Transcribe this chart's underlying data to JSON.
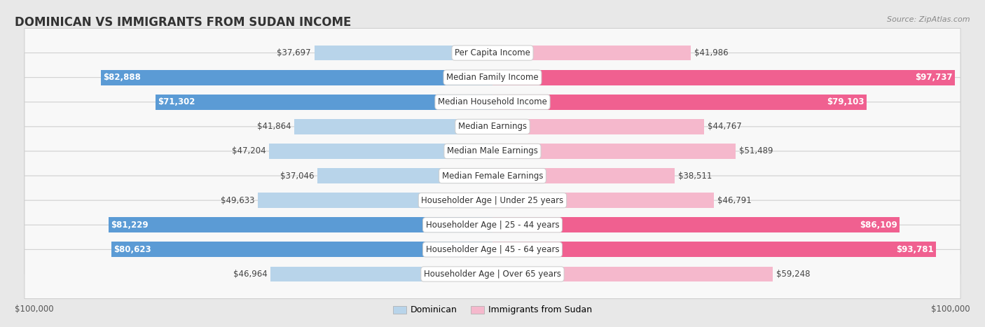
{
  "title": "DOMINICAN VS IMMIGRANTS FROM SUDAN INCOME",
  "source": "Source: ZipAtlas.com",
  "categories": [
    "Per Capita Income",
    "Median Family Income",
    "Median Household Income",
    "Median Earnings",
    "Median Male Earnings",
    "Median Female Earnings",
    "Householder Age | Under 25 years",
    "Householder Age | 25 - 44 years",
    "Householder Age | 45 - 64 years",
    "Householder Age | Over 65 years"
  ],
  "dominican_values": [
    37697,
    82888,
    71302,
    41864,
    47204,
    37046,
    49633,
    81229,
    80623,
    46964
  ],
  "sudan_values": [
    41986,
    97737,
    79103,
    44767,
    51489,
    38511,
    46791,
    86109,
    93781,
    59248
  ],
  "max_value": 100000,
  "dom_color_light": "#b8d4ea",
  "dom_color_dark": "#5b9bd5",
  "sud_color_light": "#f5b8cc",
  "sud_color_dark": "#f06090",
  "dom_threshold": 65000,
  "sud_threshold": 65000,
  "dominican_label": "Dominican",
  "sudan_label": "Immigrants from Sudan",
  "bg_color": "#e8e8e8",
  "row_bg": "#f5f5f5",
  "xlabel_left": "$100,000",
  "xlabel_right": "$100,000",
  "title_fontsize": 12,
  "source_fontsize": 8,
  "value_fontsize": 8.5,
  "category_fontsize": 8.5,
  "legend_fontsize": 9
}
